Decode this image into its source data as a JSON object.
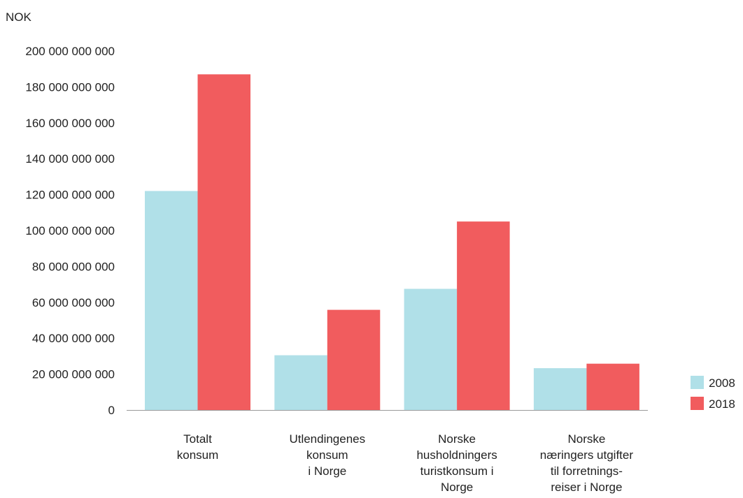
{
  "chart_data": {
    "type": "bar",
    "unit_label": "NOK",
    "categories": [
      [
        "Totalt",
        "konsum"
      ],
      [
        "Utlendingenes",
        "konsum",
        "i Norge"
      ],
      [
        "Norske",
        "husholdningers",
        "turistkonsum i",
        "Norge"
      ],
      [
        "Norske",
        "næringers utgifter",
        "til forretnings-",
        "reiser i Norge"
      ]
    ],
    "series": [
      {
        "name": "2008",
        "color": "#b0e0e8",
        "values": [
          122000000000,
          30500000000,
          67500000000,
          23300000000
        ]
      },
      {
        "name": "2018",
        "color": "#f15c5e",
        "values": [
          187000000000,
          55800000000,
          105000000000,
          25800000000
        ]
      }
    ],
    "ylim": [
      0,
      200000000000
    ],
    "yticks": [
      {
        "value": 0,
        "label": "0"
      },
      {
        "value": 20000000000,
        "label": "20 000 000 000"
      },
      {
        "value": 40000000000,
        "label": "40 000 000 000"
      },
      {
        "value": 60000000000,
        "label": "60 000 000 000"
      },
      {
        "value": 80000000000,
        "label": "80 000 000 000"
      },
      {
        "value": 100000000000,
        "label": "100 000 000 000"
      },
      {
        "value": 120000000000,
        "label": "120 000 000 000"
      },
      {
        "value": 140000000000,
        "label": "140 000 000 000"
      },
      {
        "value": 160000000000,
        "label": "160 000 000 000"
      },
      {
        "value": 180000000000,
        "label": "180 000 000 000"
      },
      {
        "value": 200000000000,
        "label": "200 000 000 000"
      }
    ],
    "grid": false,
    "legend": "right"
  }
}
